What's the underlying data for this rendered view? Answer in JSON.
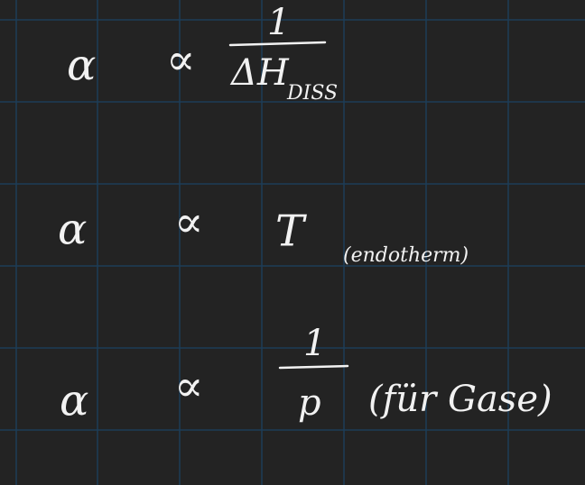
{
  "lines": [
    {
      "lhs": "α",
      "relation": "∝",
      "numerator": "1",
      "denominator": "ΔH",
      "subscript": "DISS"
    },
    {
      "lhs": "α",
      "relation": "∝",
      "expression": "T",
      "note": "(endotherm)"
    },
    {
      "lhs": "α",
      "relation": "∝",
      "numerator": "1",
      "denominator": "p",
      "note": "(für Gase)"
    }
  ]
}
